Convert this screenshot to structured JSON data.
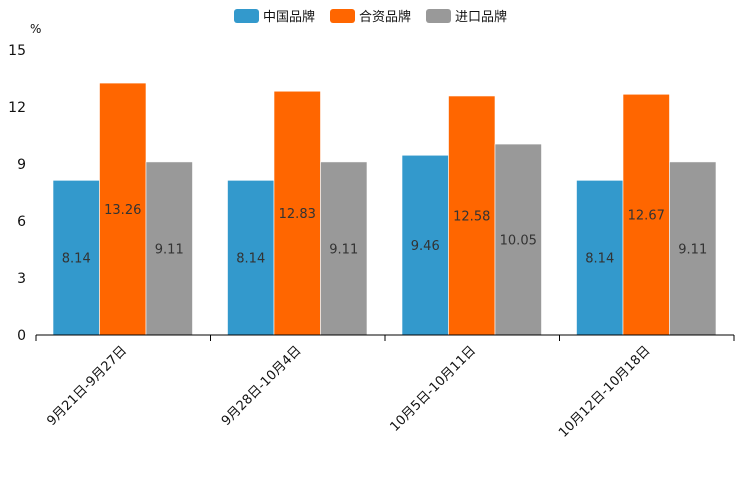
{
  "chart_data": {
    "type": "bar",
    "title": "",
    "unit": "%",
    "xlabel": "",
    "ylabel": "%",
    "ylim": [
      0,
      15
    ],
    "yticks": [
      0,
      3,
      6,
      9,
      12,
      15
    ],
    "categories": [
      "9月21日-9月27日",
      "9月28日-10月4日",
      "10月5日-10月11日",
      "10月12日-10月18日"
    ],
    "series": [
      {
        "name": "中国品牌",
        "color": "#3399cc",
        "values": [
          8.14,
          8.14,
          9.46,
          8.14
        ],
        "labels": [
          "8.14",
          "8.14",
          "9.46",
          "8.14"
        ]
      },
      {
        "name": "合资品牌",
        "color": "#ff6600",
        "values": [
          13.26,
          12.83,
          12.58,
          12.67
        ],
        "labels": [
          "13.26",
          "12.83",
          "12.58",
          "12.67"
        ]
      },
      {
        "name": "进口品牌",
        "color": "#999999",
        "values": [
          9.11,
          9.11,
          10.05,
          9.11
        ],
        "labels": [
          "9.11",
          "9.11",
          "10.05",
          "9.11"
        ]
      }
    ],
    "legend_position": "top-center",
    "grid": false
  }
}
